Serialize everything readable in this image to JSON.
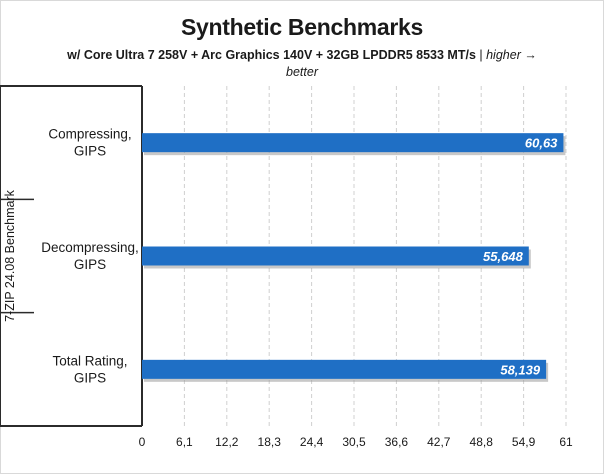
{
  "title": "Synthetic Benchmarks",
  "subtitle_bold": "w/ Core Ultra 7 258V + Arc Graphics 140V + 32GB LPDDR5 8533 MT/s",
  "subtitle_sep": " | ",
  "subtitle_italic_1": "higher →",
  "subtitle_italic_2": "better",
  "colors": {
    "bar": "#1f6fc5",
    "grid": "#d0d0d0",
    "axis": "#2b2b2b",
    "text": "#1a1a1a"
  },
  "chart_data": {
    "type": "bar",
    "orientation": "horizontal",
    "title": "Synthetic Benchmarks",
    "group_label": "7-ZIP 24.08 Benchmark",
    "categories": [
      "Compressing,\nGIPS",
      "Decompressing,\nGIPS",
      "Total Rating,\nGIPS"
    ],
    "values": [
      60.63,
      55.648,
      58.139
    ],
    "value_labels": [
      "60,63",
      "55,648",
      "58,139"
    ],
    "xlim": [
      0,
      61
    ],
    "x_ticks": [
      "0",
      "6,1",
      "12,2",
      "18,3",
      "24,4",
      "30,5",
      "36,6",
      "42,7",
      "48,8",
      "54,9",
      "61"
    ],
    "grid": true,
    "legend": "none"
  }
}
